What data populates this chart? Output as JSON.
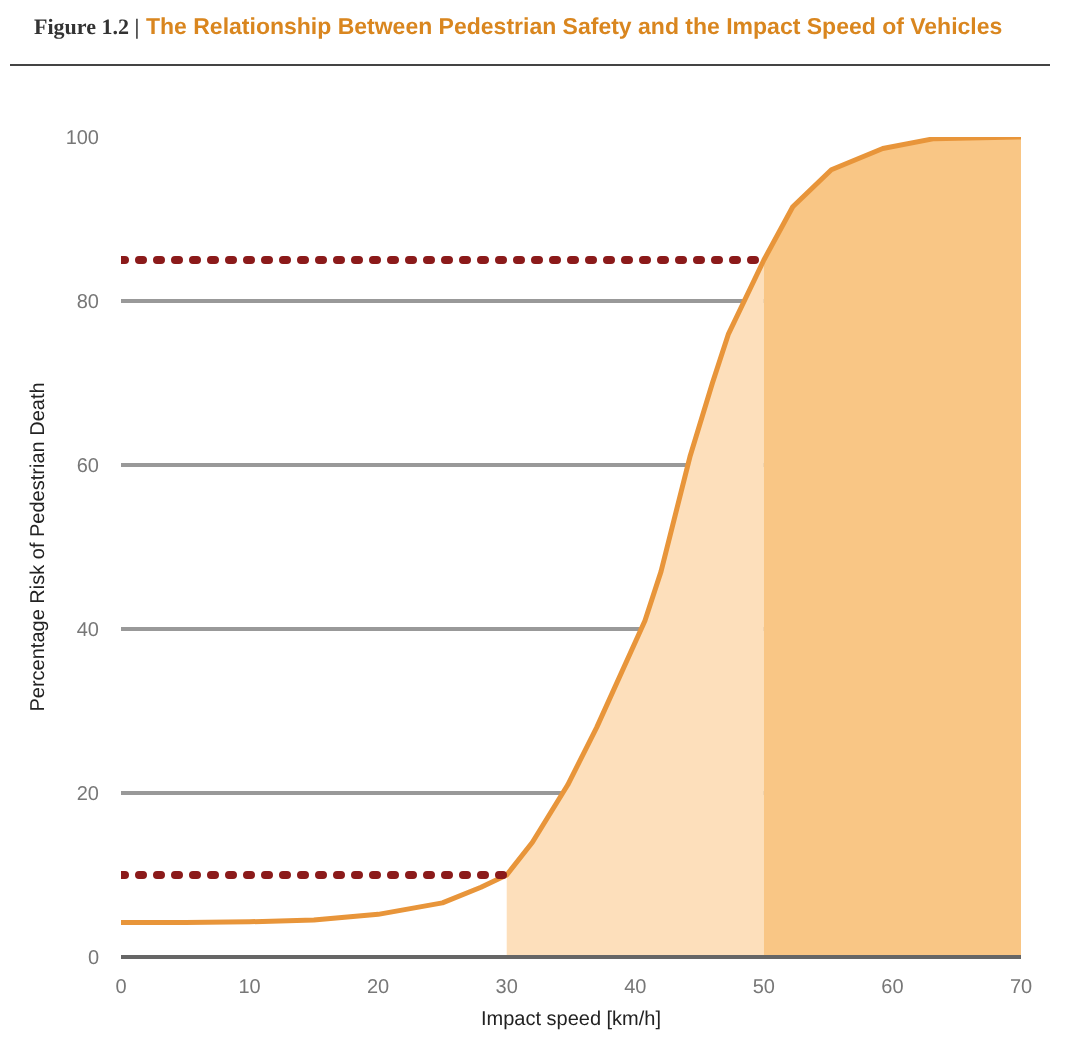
{
  "chart_data": {
    "type": "line",
    "title": "The Relationship Between Pedestrian Safety and the Impact Speed of Vehicles",
    "annotations": [
      "Figure 1.2 |"
    ],
    "xlabel": "Impact speed [km/h]",
    "ylabel": "Percentage Risk of Pedestrian Death",
    "xlim": [
      0,
      70
    ],
    "xticks": [
      0,
      10,
      20,
      30,
      40,
      50,
      60,
      70
    ],
    "ylim": [
      0,
      100
    ],
    "yticks": [
      0,
      20,
      40,
      60,
      80,
      100
    ],
    "grid": "y",
    "series": [
      {
        "type": "area",
        "color": "#fddfbb",
        "x": [
          30,
          32,
          34.75,
          37,
          40.75,
          42,
          44.25,
          46,
          47.25,
          50
        ],
        "values": [
          10,
          14,
          21,
          28,
          41,
          47,
          61,
          70,
          76,
          85
        ]
      },
      {
        "type": "area",
        "color": "#f9c685",
        "x": [
          50,
          52.25,
          55.25,
          59.25,
          63.25,
          70
        ],
        "values": [
          85,
          91.5,
          96,
          98.6,
          99.8,
          100
        ]
      },
      {
        "color": "#e8953a",
        "x": [
          0,
          5,
          10,
          15,
          20,
          25,
          28,
          30,
          32,
          34.75,
          37,
          40.75,
          42,
          44.25,
          46,
          47.25,
          50,
          52.25,
          55.25,
          59.25,
          63.25,
          70
        ],
        "values": [
          4.2,
          4.2,
          4.3,
          4.5,
          5.2,
          6.6,
          8.5,
          10,
          14,
          21,
          28,
          41,
          47,
          61,
          70,
          76,
          85,
          91.5,
          96,
          98.6,
          99.8,
          100
        ]
      },
      {
        "color": "#8b1a1a",
        "line_style": "dotted",
        "x": [
          0,
          30
        ],
        "values": [
          10,
          10
        ]
      },
      {
        "color": "#8b1a1a",
        "line_style": "dotted",
        "x": [
          0,
          50
        ],
        "values": [
          85,
          85
        ]
      }
    ]
  }
}
